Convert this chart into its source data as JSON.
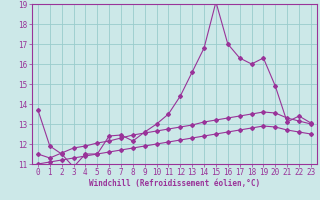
{
  "title": "",
  "xlabel": "Windchill (Refroidissement éolien,°C)",
  "ylabel": "",
  "bg_color": "#cce8e8",
  "grid_color": "#99cccc",
  "line_color": "#993399",
  "spine_color": "#993399",
  "xlim": [
    -0.5,
    23.5
  ],
  "ylim": [
    11,
    19
  ],
  "xticks": [
    0,
    1,
    2,
    3,
    4,
    5,
    6,
    7,
    8,
    9,
    10,
    11,
    12,
    13,
    14,
    15,
    16,
    17,
    18,
    19,
    20,
    21,
    22,
    23
  ],
  "yticks": [
    11,
    12,
    13,
    14,
    15,
    16,
    17,
    18,
    19
  ],
  "line1_x": [
    0,
    1,
    2,
    3,
    4,
    5,
    6,
    7,
    8,
    9,
    10,
    11,
    12,
    13,
    14,
    15,
    16,
    17,
    18,
    19,
    20,
    21,
    22,
    23
  ],
  "line1_y": [
    13.7,
    11.9,
    11.5,
    10.85,
    11.5,
    11.5,
    12.4,
    12.45,
    12.15,
    12.6,
    13.0,
    13.5,
    14.4,
    15.6,
    16.8,
    19.1,
    17.0,
    16.3,
    16.0,
    16.3,
    14.9,
    13.1,
    13.4,
    13.05
  ],
  "line2_x": [
    0,
    1,
    2,
    3,
    4,
    5,
    6,
    7,
    8,
    9,
    10,
    11,
    12,
    13,
    14,
    15,
    16,
    17,
    18,
    19,
    20,
    21,
    22,
    23
  ],
  "line2_y": [
    11.5,
    11.3,
    11.55,
    11.8,
    11.9,
    12.05,
    12.15,
    12.3,
    12.45,
    12.55,
    12.65,
    12.75,
    12.85,
    12.95,
    13.1,
    13.2,
    13.3,
    13.4,
    13.5,
    13.6,
    13.55,
    13.3,
    13.15,
    13.0
  ],
  "line3_x": [
    0,
    1,
    2,
    3,
    4,
    5,
    6,
    7,
    8,
    9,
    10,
    11,
    12,
    13,
    14,
    15,
    16,
    17,
    18,
    19,
    20,
    21,
    22,
    23
  ],
  "line3_y": [
    11.0,
    11.1,
    11.2,
    11.3,
    11.4,
    11.5,
    11.6,
    11.7,
    11.8,
    11.9,
    12.0,
    12.1,
    12.2,
    12.3,
    12.4,
    12.5,
    12.6,
    12.7,
    12.8,
    12.9,
    12.85,
    12.7,
    12.6,
    12.5
  ],
  "marker": "D",
  "markersize": 2,
  "linewidth": 0.8,
  "xlabel_fontsize": 5.5,
  "tick_fontsize": 5.5
}
